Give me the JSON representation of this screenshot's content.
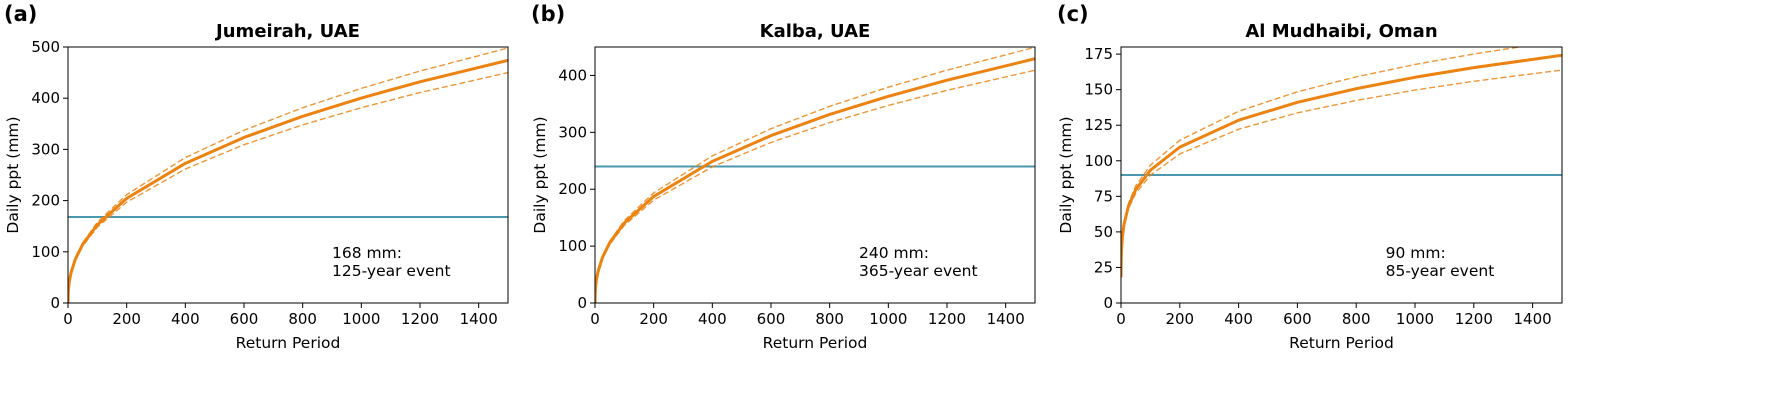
{
  "colors": {
    "curve": "#ec820f",
    "threshold": "#4a97ae",
    "axis": "#000000"
  },
  "chart_data": [
    {
      "type": "line",
      "panel_label": "(a)",
      "title": "Jumeirah, UAE",
      "xlabel": "Return Period",
      "ylabel": "Daily ppt (mm)",
      "xlim": [
        0,
        1500
      ],
      "ylim": [
        0,
        500
      ],
      "xticks": [
        0,
        200,
        400,
        600,
        800,
        1000,
        1200,
        1400
      ],
      "yticks": [
        0,
        100,
        200,
        300,
        400,
        500
      ],
      "x": [
        0,
        1,
        2,
        5,
        10,
        25,
        50,
        100,
        200,
        400,
        600,
        800,
        1000,
        1200,
        1500
      ],
      "series": [
        {
          "name": "central",
          "style": "solid",
          "values": [
            0,
            22.3,
            29.8,
            43.7,
            58.4,
            85.6,
            114.4,
            152.9,
            204.3,
            272.8,
            323.3,
            364.6,
            400.3,
            432,
            474
          ]
        },
        {
          "name": "upper bound",
          "style": "dashed",
          "values": [
            0,
            22.3,
            29.9,
            44.2,
            59.3,
            87.5,
            117.5,
            157.7,
            211.7,
            284,
            337.4,
            381.3,
            419.2,
            453,
            498
          ]
        },
        {
          "name": "lower bound",
          "style": "dashed",
          "values": [
            0,
            22.3,
            29.7,
            43.2,
            57.5,
            83.7,
            111.3,
            148.1,
            196.9,
            261.6,
            309.2,
            347.9,
            381.4,
            411,
            450
          ]
        }
      ],
      "threshold": 168,
      "annotation": {
        "x": 900,
        "y": 88,
        "lines": [
          "168 mm:",
          "125-year event"
        ]
      }
    },
    {
      "type": "line",
      "panel_label": "(b)",
      "title": "Kalba, UAE",
      "xlabel": "Return Period",
      "ylabel": "Daily ppt (mm)",
      "xlim": [
        0,
        1500
      ],
      "ylim": [
        0,
        450
      ],
      "xticks": [
        0,
        200,
        400,
        600,
        800,
        1000,
        1200,
        1400
      ],
      "yticks": [
        0,
        100,
        200,
        300,
        400
      ],
      "x": [
        0,
        1,
        2,
        5,
        10,
        25,
        50,
        100,
        200,
        400,
        600,
        800,
        1000,
        1200,
        1500
      ],
      "series": [
        {
          "name": "central",
          "style": "solid",
          "values": [
            0,
            21.1,
            28.1,
            41.0,
            54.5,
            79.5,
            105.8,
            140.7,
            187.2,
            249,
            294.3,
            331.5,
            363.3,
            391.6,
            429.4
          ]
        },
        {
          "name": "upper bound",
          "style": "dashed",
          "values": [
            0,
            21.1,
            28.2,
            41.4,
            55.3,
            81.1,
            108.5,
            144.9,
            193.6,
            258.6,
            306.4,
            345.7,
            379.4,
            409.3,
            449.6
          ]
        },
        {
          "name": "lower bound",
          "style": "dashed",
          "values": [
            0,
            21.1,
            28.0,
            40.6,
            53.7,
            77.9,
            103.1,
            136.5,
            180.8,
            239.4,
            282.2,
            317.3,
            347.2,
            373.9,
            409.2
          ]
        }
      ],
      "threshold": 240,
      "annotation": {
        "x": 900,
        "y": 79,
        "lines": [
          "240 mm:",
          "365-year event"
        ]
      }
    },
    {
      "type": "line",
      "panel_label": "(c)",
      "title": "Al Mudhaibi, Oman",
      "xlabel": "Return Period",
      "ylabel": "Daily ppt (mm)",
      "xlim": [
        0,
        1500
      ],
      "ylim": [
        0,
        180
      ],
      "xticks": [
        0,
        200,
        400,
        600,
        800,
        1000,
        1200,
        1400
      ],
      "yticks": [
        0,
        25,
        50,
        75,
        100,
        125,
        150,
        175
      ],
      "x": [
        0,
        1,
        2,
        5,
        10,
        25,
        50,
        100,
        200,
        400,
        600,
        800,
        1000,
        1200,
        1500
      ],
      "series": [
        {
          "name": "central",
          "style": "solid",
          "values": [
            18,
            32.4,
            38.0,
            46.9,
            55.0,
            67.9,
            79.7,
            93.4,
            109.6,
            128.5,
            141.1,
            150.7,
            158.7,
            165.5,
            174.2
          ]
        },
        {
          "name": "upper bound",
          "style": "dashed",
          "values": [
            18,
            32.4,
            38.2,
            47.5,
            56.0,
            69.7,
            82.3,
            96.9,
            114.4,
            134.8,
            148.5,
            159.0,
            167.7,
            175.1,
            184.6
          ]
        },
        {
          "name": "lower bound",
          "style": "dashed",
          "values": [
            18,
            32.4,
            37.8,
            46.3,
            54.0,
            66.1,
            77.1,
            89.9,
            104.8,
            122.2,
            133.7,
            142.4,
            149.7,
            155.9,
            163.8
          ]
        }
      ],
      "threshold": 90,
      "annotation": {
        "x": 900,
        "y": 31.6,
        "lines": [
          "90 mm:",
          "85-year event"
        ]
      }
    }
  ]
}
